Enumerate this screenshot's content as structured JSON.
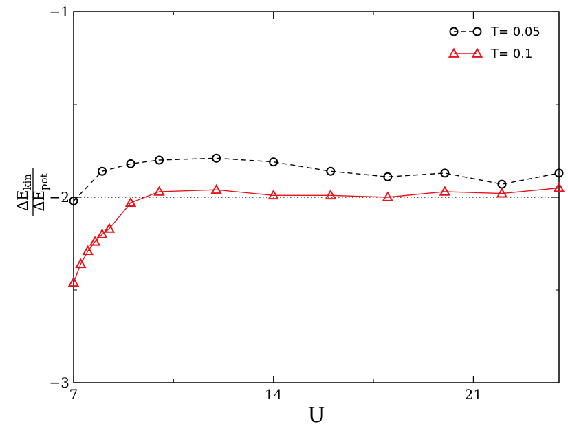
{
  "chart_data": {
    "type": "line",
    "xlabel": "U",
    "ylabel": {
      "numerator": "ΔE",
      "numerator_sub": "kin",
      "denominator": "ΔE",
      "denominator_sub": "pot"
    },
    "xlim": [
      7,
      24
    ],
    "ylim": [
      -3,
      -1
    ],
    "xticks": [
      7,
      14,
      21
    ],
    "xtick_labels": [
      "7",
      "14",
      "21"
    ],
    "yticks": [
      -3,
      -2,
      -1
    ],
    "ytick_labels": [
      "−3",
      "−2",
      "−1"
    ],
    "reference_line": {
      "y": -2,
      "style": "dotted",
      "color": "#000000"
    },
    "legend_position": "top-right",
    "grid": false,
    "series": [
      {
        "name": "T= 0.05",
        "color": "#000000",
        "line_style": "dashed",
        "marker": "circle",
        "x": [
          7,
          8,
          9,
          10,
          12,
          14,
          16,
          18,
          20,
          22,
          24
        ],
        "y": [
          -2.02,
          -1.86,
          -1.82,
          -1.8,
          -1.79,
          -1.81,
          -1.86,
          -1.89,
          -1.87,
          -1.93,
          -1.87
        ]
      },
      {
        "name": "T= 0.1",
        "color": "#e8141a",
        "line_style": "solid",
        "marker": "triangle",
        "x": [
          7,
          7.25,
          7.5,
          7.75,
          8,
          8.25,
          9,
          10,
          12,
          14,
          16,
          18,
          20,
          22,
          24
        ],
        "y": [
          -2.46,
          -2.36,
          -2.29,
          -2.24,
          -2.2,
          -2.17,
          -2.03,
          -1.97,
          -1.96,
          -1.99,
          -1.99,
          -2.0,
          -1.97,
          -1.98,
          -1.95
        ]
      }
    ]
  }
}
